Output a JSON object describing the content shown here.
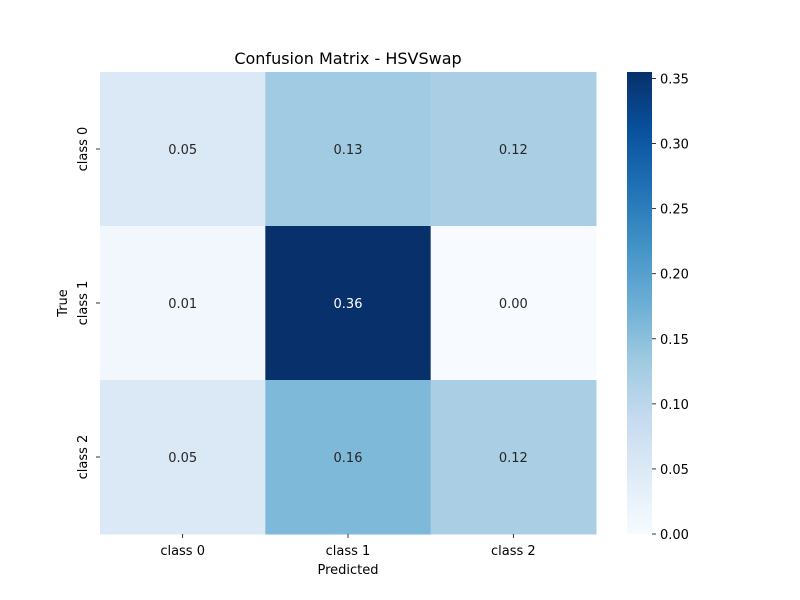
{
  "chart_data": {
    "type": "heatmap",
    "title": "Confusion Matrix - HSVSwap",
    "xlabel": "Predicted",
    "ylabel": "True",
    "x_categories": [
      "class 0",
      "class 1",
      "class 2"
    ],
    "y_categories": [
      "class 0",
      "class 1",
      "class 2"
    ],
    "values": [
      [
        0.05,
        0.13,
        0.12
      ],
      [
        0.01,
        0.36,
        0.0
      ],
      [
        0.05,
        0.16,
        0.12
      ]
    ],
    "value_format": "0.00",
    "colormap": "Blues",
    "colorbar": {
      "range": [
        0.0,
        0.355
      ],
      "ticks": [
        0.0,
        0.05,
        0.1,
        0.15,
        0.2,
        0.25,
        0.3,
        0.35
      ],
      "tick_labels": [
        "0.00",
        "0.05",
        "0.10",
        "0.15",
        "0.20",
        "0.25",
        "0.30",
        "0.35"
      ]
    },
    "grid": false,
    "legend": "colorbar-right"
  }
}
